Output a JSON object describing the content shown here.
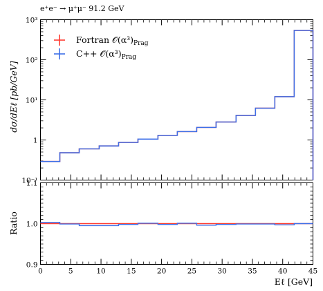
{
  "chart_data": [
    {
      "type": "line",
      "panel": "main",
      "title": "e⁺e⁻ → μ⁺μ⁻ 91.2 GeV",
      "ylabel": "dσ/dEℓ [pb/GeV]",
      "yscale": "log",
      "ylim": [
        0.1,
        1000
      ],
      "xlim": [
        0,
        45
      ],
      "y_ticks": [
        {
          "value": 0.1,
          "label": "10⁻¹"
        },
        {
          "value": 1,
          "label": "1"
        },
        {
          "value": 10,
          "label": "10¹"
        },
        {
          "value": 100,
          "label": "10²"
        },
        {
          "value": 1000,
          "label": "10³"
        }
      ],
      "bin_edges": [
        0,
        3.2,
        6.4,
        9.7,
        12.9,
        16.1,
        19.4,
        22.6,
        25.8,
        29.0,
        32.3,
        35.5,
        38.7,
        41.9,
        45
      ],
      "legend_position": "top-left",
      "series": [
        {
          "name": "Fortran 𝒪(α³)",
          "name_sub": "Prag",
          "color": "#ff3b30",
          "values": [
            0.29,
            0.48,
            0.6,
            0.71,
            0.87,
            1.05,
            1.3,
            1.62,
            2.05,
            2.8,
            4.1,
            6.2,
            12.0,
            540
          ]
        },
        {
          "name": "C++ 𝒪(α³)",
          "name_sub": "Prag",
          "color": "#3d6fe8",
          "values": [
            0.29,
            0.48,
            0.6,
            0.71,
            0.87,
            1.05,
            1.3,
            1.62,
            2.05,
            2.8,
            4.1,
            6.2,
            12.0,
            540
          ]
        }
      ]
    },
    {
      "type": "line",
      "panel": "ratio",
      "ylabel": "Ratio",
      "xlabel": "Eℓ [GeV]",
      "ylim": [
        0.9,
        1.1
      ],
      "xlim": [
        0,
        45
      ],
      "y_ticks": [
        {
          "value": 0.9,
          "label": "0.9"
        },
        {
          "value": 1.0,
          "label": "1.0"
        },
        {
          "value": 1.1,
          "label": "1.1"
        }
      ],
      "x_ticks": [
        {
          "value": 0,
          "label": "0"
        },
        {
          "value": 5,
          "label": "5"
        },
        {
          "value": 10,
          "label": "10"
        },
        {
          "value": 15,
          "label": "15"
        },
        {
          "value": 20,
          "label": "20"
        },
        {
          "value": 25,
          "label": "25"
        },
        {
          "value": 30,
          "label": "30"
        },
        {
          "value": 35,
          "label": "35"
        },
        {
          "value": 40,
          "label": "40"
        },
        {
          "value": 45,
          "label": "45"
        }
      ],
      "bin_edges": [
        0,
        3.2,
        6.4,
        9.7,
        12.9,
        16.1,
        19.4,
        22.6,
        25.8,
        29.0,
        32.3,
        35.5,
        38.7,
        41.9,
        45
      ],
      "series": [
        {
          "name": "Fortran 𝒪(α³)",
          "color": "#ff3b30",
          "values": [
            1.0,
            1.0,
            1.0,
            1.0,
            1.0,
            1.0,
            1.0,
            1.0,
            1.0,
            1.0,
            1.0,
            1.0,
            1.0,
            1.0
          ]
        },
        {
          "name": "C++ 𝒪(α³)",
          "color": "#3d6fe8",
          "values": [
            1.003,
            0.999,
            0.995,
            0.995,
            0.998,
            1.001,
            0.998,
            1.001,
            0.996,
            0.998,
            0.999,
            0.999,
            0.997,
            1.0
          ]
        }
      ]
    }
  ]
}
